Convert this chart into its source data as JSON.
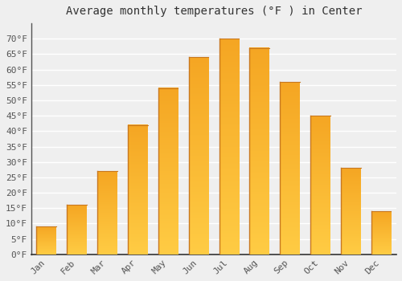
{
  "title": "Average monthly temperatures (°F ) in Center",
  "months": [
    "Jan",
    "Feb",
    "Mar",
    "Apr",
    "May",
    "Jun",
    "Jul",
    "Aug",
    "Sep",
    "Oct",
    "Nov",
    "Dec"
  ],
  "values": [
    9,
    16,
    27,
    42,
    54,
    64,
    70,
    67,
    56,
    45,
    28,
    14
  ],
  "bar_color_light": "#FFCC44",
  "bar_color_dark": "#F5A623",
  "bar_edge_color": "#C87820",
  "ylim": [
    0,
    75
  ],
  "yticks": [
    0,
    5,
    10,
    15,
    20,
    25,
    30,
    35,
    40,
    45,
    50,
    55,
    60,
    65,
    70
  ],
  "ytick_labels": [
    "0°F",
    "5°F",
    "10°F",
    "15°F",
    "20°F",
    "25°F",
    "30°F",
    "35°F",
    "40°F",
    "45°F",
    "50°F",
    "55°F",
    "60°F",
    "65°F",
    "70°F"
  ],
  "background_color": "#EFEFEF",
  "plot_bg_color": "#EFEFEF",
  "grid_color": "#FFFFFF",
  "title_fontsize": 10,
  "tick_fontsize": 8,
  "bar_width": 0.65,
  "fig_width": 5.0,
  "fig_height": 3.5
}
